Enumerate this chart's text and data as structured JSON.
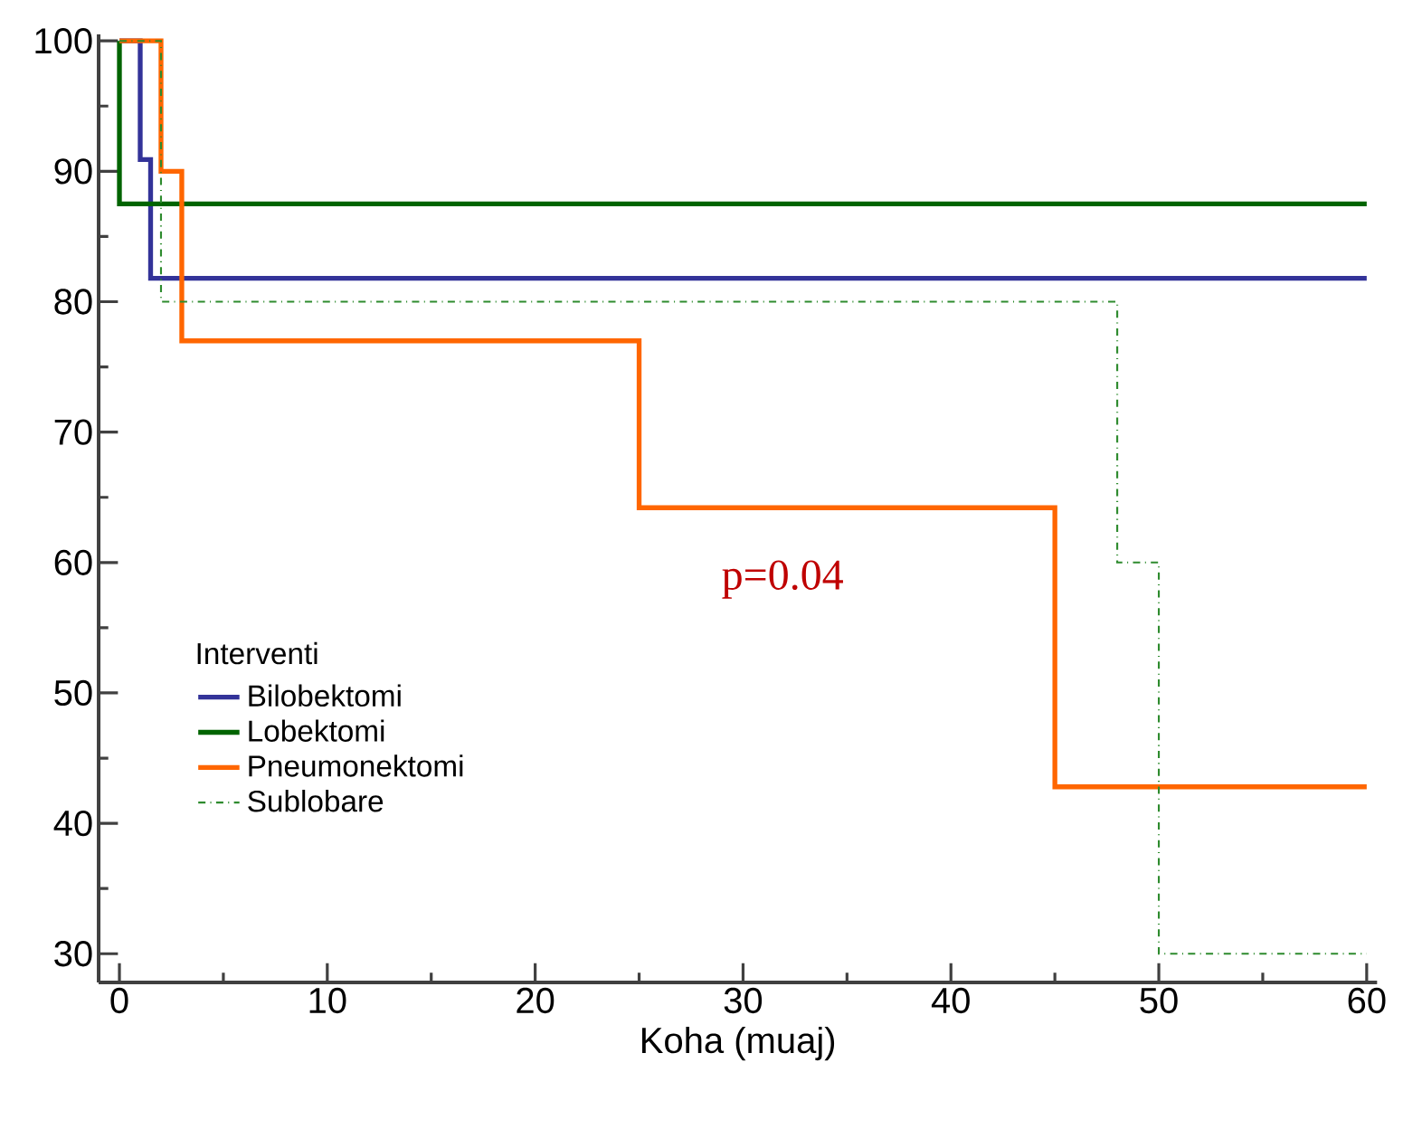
{
  "chart_data": {
    "type": "step",
    "xlabel": "Koha (muaj)",
    "legend_title": "Interventi",
    "xlim": [
      -1,
      60.5
    ],
    "ylim": [
      27.8,
      100.5
    ],
    "xticks": [
      0,
      10,
      20,
      30,
      40,
      50,
      60
    ],
    "yticks": [
      30,
      40,
      50,
      60,
      70,
      80,
      90,
      100
    ],
    "grid": false,
    "legend": "bottom left",
    "annotations": [
      "p=0.04"
    ],
    "series": [
      {
        "name": "Bilobektomi",
        "color": "#333399",
        "x": [
          0,
          1,
          1.5,
          60
        ],
        "values": [
          100,
          90.9,
          81.8,
          81.8
        ]
      },
      {
        "name": "Lobektomi",
        "color": "#006400",
        "x": [
          0,
          0,
          60
        ],
        "values": [
          100,
          87.5,
          87.5
        ]
      },
      {
        "name": "Pneumonektomi",
        "color": "#ff6600",
        "x": [
          0,
          2,
          3,
          25,
          45,
          60
        ],
        "values": [
          100,
          90,
          77,
          64.2,
          42.8,
          42.8
        ]
      },
      {
        "name": "Sublobare",
        "color": "#2e8b2e",
        "line_style": "dashed",
        "x": [
          0,
          2,
          48,
          50,
          60
        ],
        "values": [
          100,
          80,
          60,
          30,
          30
        ]
      }
    ]
  }
}
